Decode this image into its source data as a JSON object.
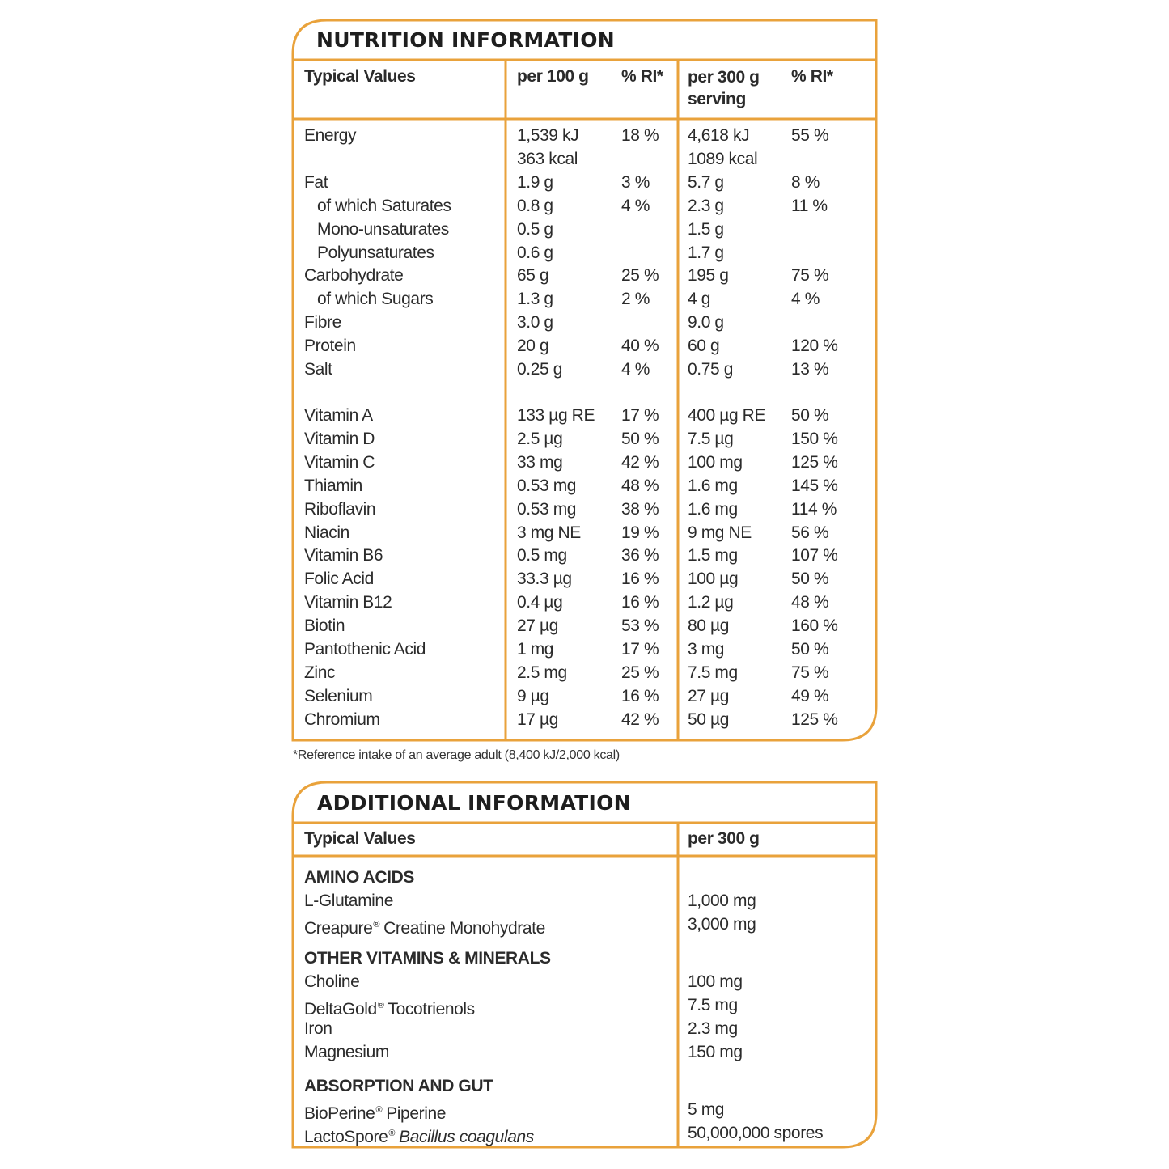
{
  "nutrition": {
    "title": "NUTRITION INFORMATION",
    "headers": [
      "Typical Values",
      "per 100 g",
      "% RI*",
      "per 300 g serving",
      "% RI*"
    ],
    "macros": [
      {
        "cells": [
          "Energy",
          "1,539 kJ",
          "18 %",
          "4,618 kJ",
          "55 %"
        ]
      },
      {
        "cells": [
          null,
          "363 kcal",
          null,
          "1089 kcal",
          null
        ]
      },
      {
        "cells": [
          "Fat",
          "1.9 g",
          "3 %",
          "5.7 g",
          "8 %"
        ]
      },
      {
        "cells": [
          "of which Saturates",
          "0.8 g",
          "4 %",
          "2.3 g",
          "11 %"
        ],
        "indent": true
      },
      {
        "cells": [
          "Mono-unsaturates",
          "0.5 g",
          null,
          "1.5 g",
          null
        ],
        "indent": true
      },
      {
        "cells": [
          "Polyunsaturates",
          "0.6 g",
          null,
          "1.7 g",
          null
        ],
        "indent": true
      },
      {
        "cells": [
          "Carbohydrate",
          "65 g",
          "25 %",
          "195 g",
          "75 %"
        ]
      },
      {
        "cells": [
          "of which Sugars",
          "1.3 g",
          "2 %",
          "4 g",
          "4 %"
        ],
        "indent": true
      },
      {
        "cells": [
          "Fibre",
          "3.0 g",
          null,
          "9.0 g",
          null
        ]
      },
      {
        "cells": [
          "Protein",
          "20 g",
          "40 %",
          "60 g",
          "120 %"
        ]
      },
      {
        "cells": [
          "Salt",
          "0.25 g",
          "4 %",
          "0.75 g",
          "13 %"
        ]
      }
    ],
    "vitamins": [
      {
        "cells": [
          "Vitamin A",
          "133 µg RE",
          "17 %",
          "400 µg RE",
          "50 %"
        ]
      },
      {
        "cells": [
          "Vitamin D",
          "2.5 µg",
          "50 %",
          "7.5 µg",
          "150 %"
        ]
      },
      {
        "cells": [
          "Vitamin C",
          "33 mg",
          "42 %",
          "100 mg",
          "125 %"
        ]
      },
      {
        "cells": [
          "Thiamin",
          "0.53 mg",
          "48 %",
          "1.6 mg",
          "145 %"
        ]
      },
      {
        "cells": [
          "Riboflavin",
          "0.53 mg",
          "38 %",
          "1.6 mg",
          "114 %"
        ]
      },
      {
        "cells": [
          "Niacin",
          "3 mg NE",
          "19 %",
          "9 mg NE",
          "56 %"
        ]
      },
      {
        "cells": [
          "Vitamin B6",
          "0.5 mg",
          "36 %",
          "1.5 mg",
          "107 %"
        ]
      },
      {
        "cells": [
          "Folic Acid",
          "33.3 µg",
          "16 %",
          "100 µg",
          "50 %"
        ]
      },
      {
        "cells": [
          "Vitamin B12",
          "0.4 µg",
          "16 %",
          "1.2 µg",
          "48 %"
        ]
      },
      {
        "cells": [
          "Biotin",
          "27 µg",
          "53 %",
          "80 µg",
          "160 %"
        ]
      },
      {
        "cells": [
          "Pantothenic Acid",
          "1 mg",
          "17 %",
          "3 mg",
          "50 %"
        ]
      },
      {
        "cells": [
          "Zinc",
          "2.5 mg",
          "25 %",
          "7.5 mg",
          "75 %"
        ]
      },
      {
        "cells": [
          "Selenium",
          "9 µg",
          "16 %",
          "27 µg",
          "49 %"
        ]
      },
      {
        "cells": [
          "Chromium",
          "17 µg",
          "42 %",
          "50 µg",
          "125 %"
        ]
      }
    ],
    "footnote": "*Reference intake of an average adult (8,400 kJ/2,000 kcal)"
  },
  "additional": {
    "title": "ADDITIONAL INFORMATION",
    "headers": [
      "Typical Values",
      "per 300 g"
    ],
    "sections": [
      {
        "heading": "AMINO ACIDS",
        "rows": [
          {
            "label": [
              "L-Glutamine"
            ],
            "amount": "1,000 mg"
          },
          {
            "label": [
              "Creapure",
              "®",
              "Creatine Monohydrate"
            ],
            "amount": "3,000 mg"
          }
        ]
      },
      {
        "heading": "OTHER VITAMINS & MINERALS",
        "rows": [
          {
            "label": [
              "Choline"
            ],
            "amount": "100 mg"
          },
          {
            "label": [
              "DeltaGold",
              "®",
              "Tocotrienols"
            ],
            "amount": "7.5 mg"
          },
          {
            "label": [
              "Iron"
            ],
            "amount": "2.3 mg"
          },
          {
            "label": [
              "Magnesium"
            ],
            "amount": "150 mg"
          }
        ]
      },
      {
        "heading": "ABSORPTION AND GUT",
        "rows": [
          {
            "label": [
              "BioPerine",
              "®",
              "Piperine"
            ],
            "amount": "5 mg"
          },
          {
            "label": [
              "LactoSpore",
              "®",
              "Bacillus coagulans"
            ],
            "amount": "50,000,000 spores",
            "italic": true
          }
        ]
      }
    ]
  }
}
